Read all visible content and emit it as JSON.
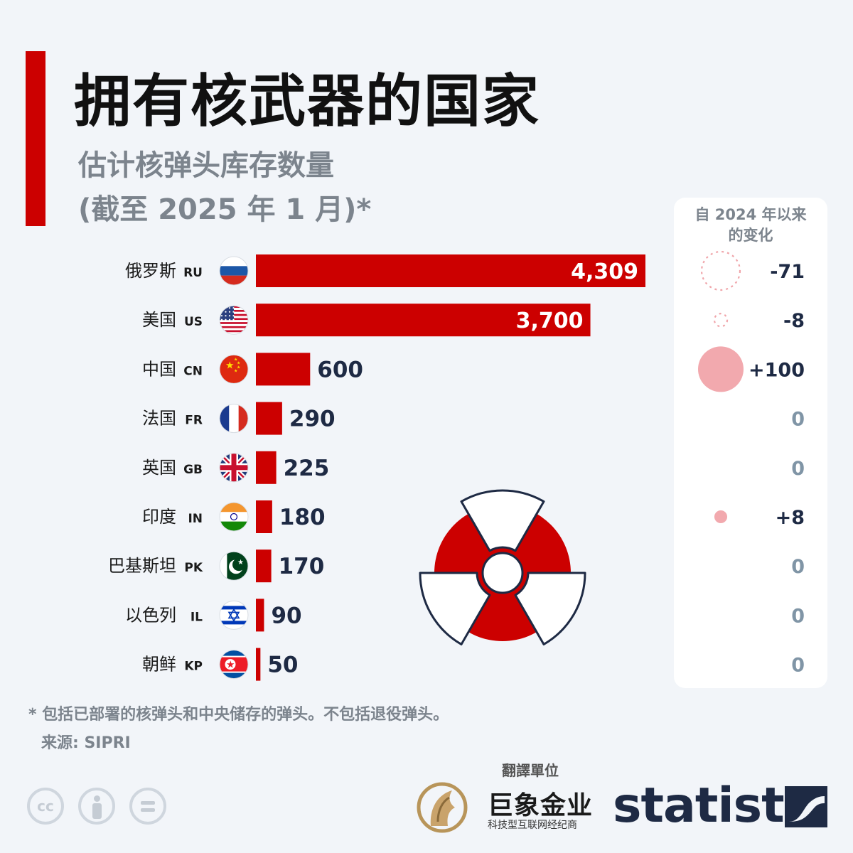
{
  "title": "拥有核武器的国家",
  "subtitle_line1": "估计核弹头库存数量",
  "subtitle_line2": "(截至 2025 年 1 月)*",
  "change_header_line1": "自 2024 年以来",
  "change_header_line2": "的变化",
  "footnote": "* 包括已部署的核弹头和中央储存的弹头。不包括退役弹头。",
  "source": "来源: SIPRI",
  "license_icons": [
    "cc-icon",
    "attribution-icon",
    "no-derivatives-icon"
  ],
  "license_cc_text": "cc",
  "translator_label": "翻譯單位",
  "translator_name": "巨象金业",
  "translator_tagline": "科技型互联网经纪商",
  "brand": "statista",
  "colors": {
    "accent": "#cc0000",
    "bar": "#cc0000",
    "value_dark": "#1e2a44",
    "change_fill": "#f2a9ae",
    "change_dashed": "#f0a5aa",
    "muted": "#7c848d",
    "zero_text": "#8095a6"
  },
  "chart_data": {
    "type": "bar",
    "orientation": "horizontal",
    "categories": [
      "俄罗斯",
      "美国",
      "中国",
      "法国",
      "英国",
      "印度",
      "巴基斯坦",
      "以色列",
      "朝鲜"
    ],
    "codes": [
      "RU",
      "US",
      "CN",
      "FR",
      "GB",
      "IN",
      "PK",
      "IL",
      "KP"
    ],
    "flag_icons": [
      "russia-flag-icon",
      "usa-flag-icon",
      "china-flag-icon",
      "france-flag-icon",
      "uk-flag-icon",
      "india-flag-icon",
      "pakistan-flag-icon",
      "israel-flag-icon",
      "north-korea-flag-icon"
    ],
    "values": [
      4309,
      3700,
      600,
      290,
      225,
      180,
      170,
      90,
      50
    ],
    "value_labels": [
      "4,309",
      "3,700",
      "600",
      "290",
      "225",
      "180",
      "170",
      "90",
      "50"
    ],
    "change_since_2024": [
      -71,
      -8,
      100,
      0,
      0,
      8,
      0,
      0,
      0
    ],
    "change_labels": [
      "-71",
      "-8",
      "+100",
      "0",
      "0",
      "+8",
      "0",
      "0",
      "0"
    ],
    "decoration_icon": "radiation-symbol-icon"
  }
}
